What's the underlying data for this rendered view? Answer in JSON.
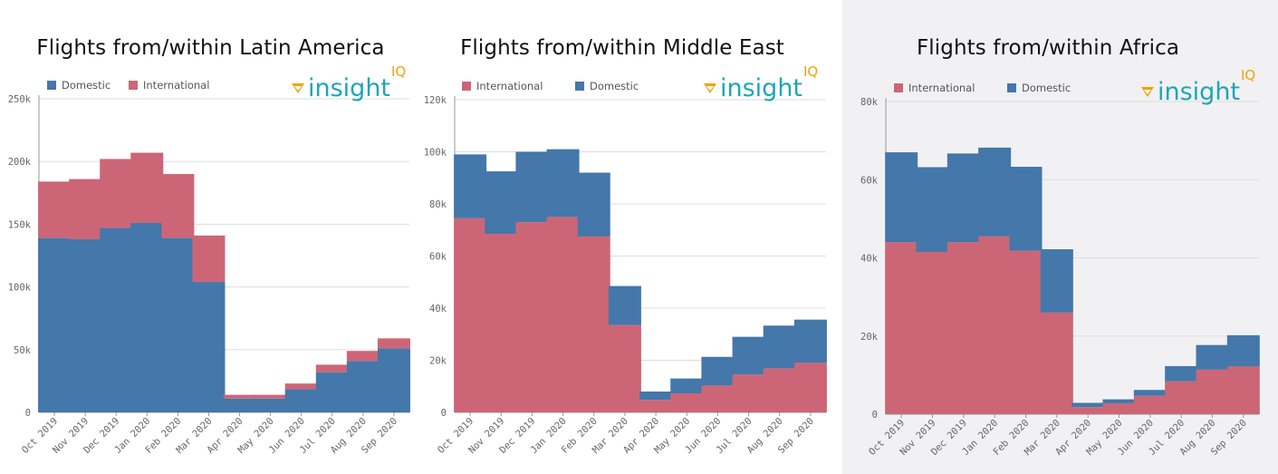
{
  "colors": {
    "domestic": "#4477aa",
    "international": "#cc6677",
    "grid": "#dddddd",
    "axis": "#999999",
    "logo_text": "#1ea5b8",
    "logo_accent": "#f0a30a"
  },
  "logo": {
    "text": "insight",
    "accent": "IQ",
    "icon": "insight-logo-icon"
  },
  "chart_data": [
    {
      "type": "bar",
      "stacked": true,
      "title": "Flights from/within Latin America",
      "categories": [
        "Oct 2019",
        "Nov 2019",
        "Dec 2019",
        "Jan 2020",
        "Feb 2020",
        "Mar 2020",
        "Apr 2020",
        "May 2020",
        "Jun 2020",
        "Jul 2020",
        "Aug 2020",
        "Sep 2020"
      ],
      "series": [
        {
          "name": "Domestic",
          "color": "#4477aa",
          "values": [
            139000,
            138000,
            147000,
            151000,
            139000,
            104000,
            11000,
            11000,
            18500,
            32000,
            41000,
            51000
          ]
        },
        {
          "name": "International",
          "color": "#cc6677",
          "values": [
            45000,
            48000,
            55000,
            56000,
            51000,
            37000,
            3000,
            3000,
            4500,
            6000,
            8000,
            8000
          ]
        }
      ],
      "legend": [
        "Domestic",
        "International"
      ],
      "yticks": [
        "250k",
        "200k",
        "150k",
        "100k",
        "50k",
        "0"
      ],
      "ylim": [
        0,
        250000
      ],
      "xlabel": "",
      "ylabel": ""
    },
    {
      "type": "bar",
      "stacked": true,
      "title": "Flights from/within Middle East",
      "categories": [
        "Oct 2019",
        "Nov 2019",
        "Dec 2019",
        "Jan 2020",
        "Feb 2020",
        "Mar 2020",
        "Apr 2020",
        "May 2020",
        "Jun 2020",
        "Jul 2020",
        "Aug 2020",
        "Sep 2020"
      ],
      "series": [
        {
          "name": "International",
          "color": "#cc6677",
          "values": [
            74500,
            68500,
            73000,
            75000,
            67500,
            33500,
            4800,
            7300,
            10300,
            14500,
            16900,
            19000
          ]
        },
        {
          "name": "Domestic",
          "color": "#4477aa",
          "values": [
            24500,
            24000,
            27000,
            26000,
            24500,
            15000,
            3200,
            5700,
            11000,
            14500,
            16400,
            16600
          ]
        }
      ],
      "legend": [
        "International",
        "Domestic"
      ],
      "yticks": [
        "120k",
        "100k",
        "80k",
        "60k",
        "40k",
        "20k",
        "0"
      ],
      "ylim": [
        0,
        120000
      ],
      "xlabel": "",
      "ylabel": ""
    },
    {
      "type": "bar",
      "stacked": true,
      "title": "Flights from/within Africa",
      "categories": [
        "Oct 2019",
        "Nov 2019",
        "Dec 2019",
        "Jan 2020",
        "Feb 2020",
        "Mar 2020",
        "Apr 2020",
        "May 2020",
        "Jun 2020",
        "Jul 2020",
        "Aug 2020",
        "Sep 2020"
      ],
      "series": [
        {
          "name": "International",
          "color": "#cc6677",
          "values": [
            44000,
            41500,
            44000,
            45500,
            41800,
            26000,
            1800,
            2800,
            4700,
            8400,
            11400,
            12200
          ]
        },
        {
          "name": "Domestic",
          "color": "#4477aa",
          "values": [
            23000,
            21700,
            22700,
            22700,
            21500,
            16200,
            1100,
            1000,
            1500,
            3900,
            6300,
            8000
          ]
        }
      ],
      "legend": [
        "International",
        "Domestic"
      ],
      "yticks": [
        "80k",
        "60k",
        "40k",
        "20k",
        "0"
      ],
      "ylim": [
        0,
        80000
      ],
      "xlabel": "",
      "ylabel": ""
    }
  ]
}
